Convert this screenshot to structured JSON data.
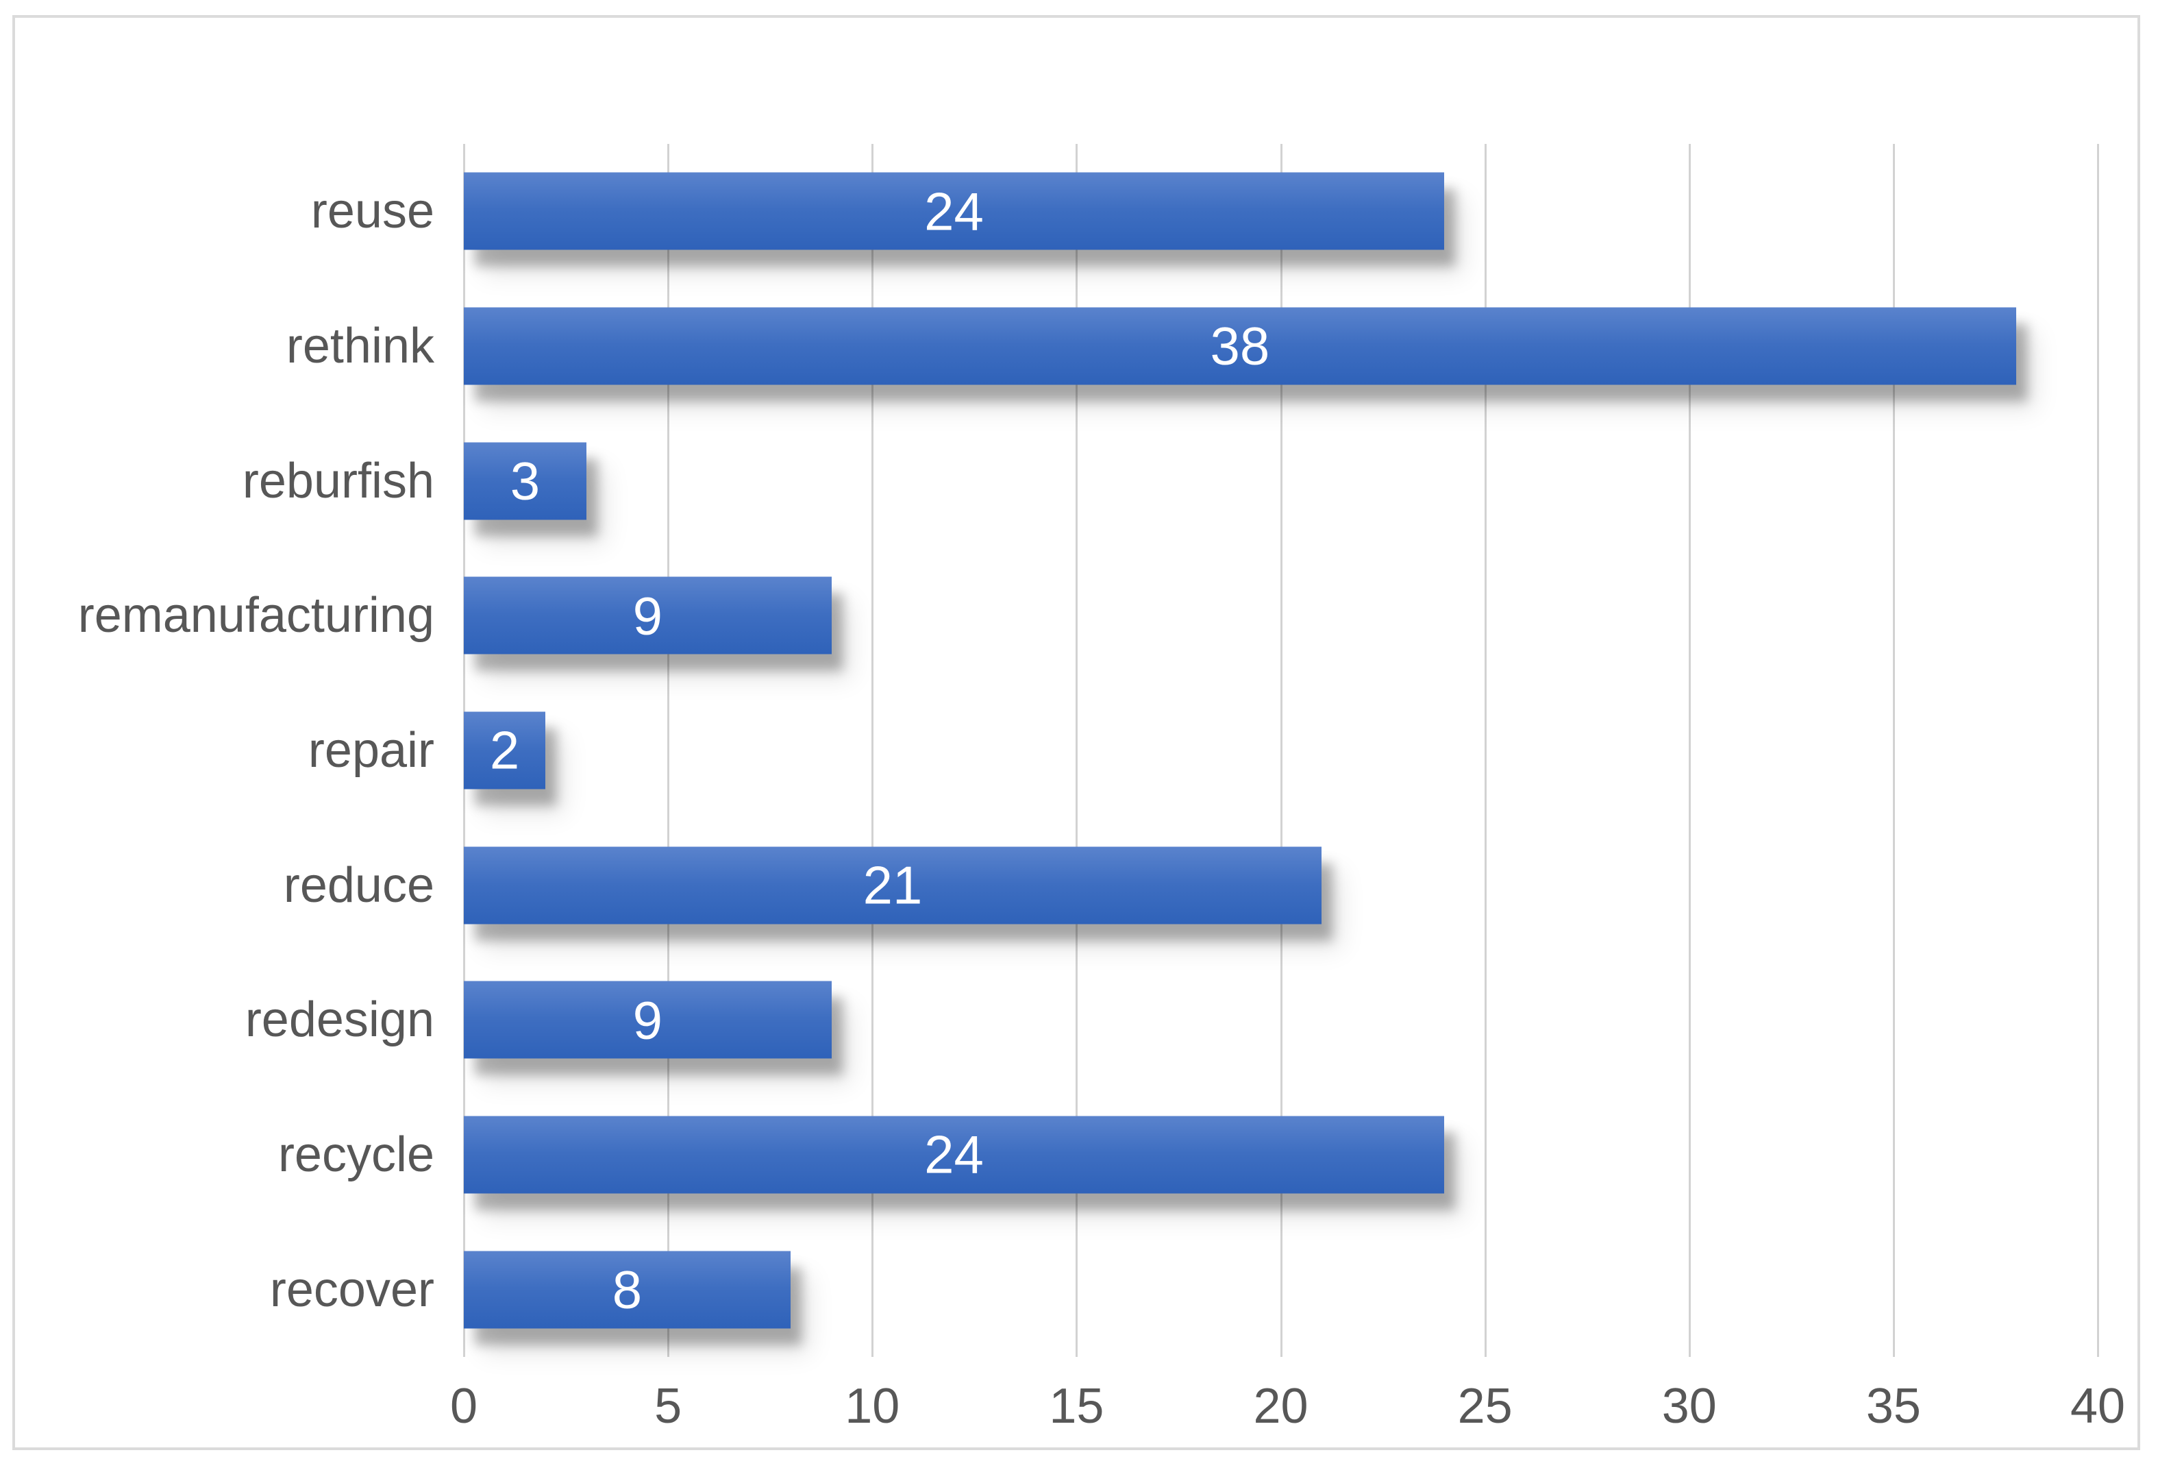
{
  "chart_data": {
    "type": "bar",
    "orientation": "horizontal",
    "title": "",
    "xlabel": "",
    "ylabel": "",
    "categories": [
      "reuse",
      "rethink",
      "reburfish",
      "remanufacturing",
      "repair",
      "reduce",
      "redesign",
      "recycle",
      "recover"
    ],
    "values": [
      24,
      38,
      3,
      9,
      2,
      21,
      9,
      24,
      8
    ],
    "xlim": [
      0,
      40
    ],
    "xticks": [
      0,
      5,
      10,
      15,
      20,
      25,
      30,
      35,
      40
    ],
    "grid": true,
    "legend": false,
    "data_labels_position": "inside-center",
    "colors": {
      "bar_gradient_top": "#5A83CD",
      "bar_gradient_bottom": "#2F62B9",
      "data_label_text": "#FFFFFF",
      "axis_text": "#575757",
      "gridline": "#D2D2D2",
      "chart_border": "#DBDBDB",
      "background": "#FFFFFF"
    }
  }
}
